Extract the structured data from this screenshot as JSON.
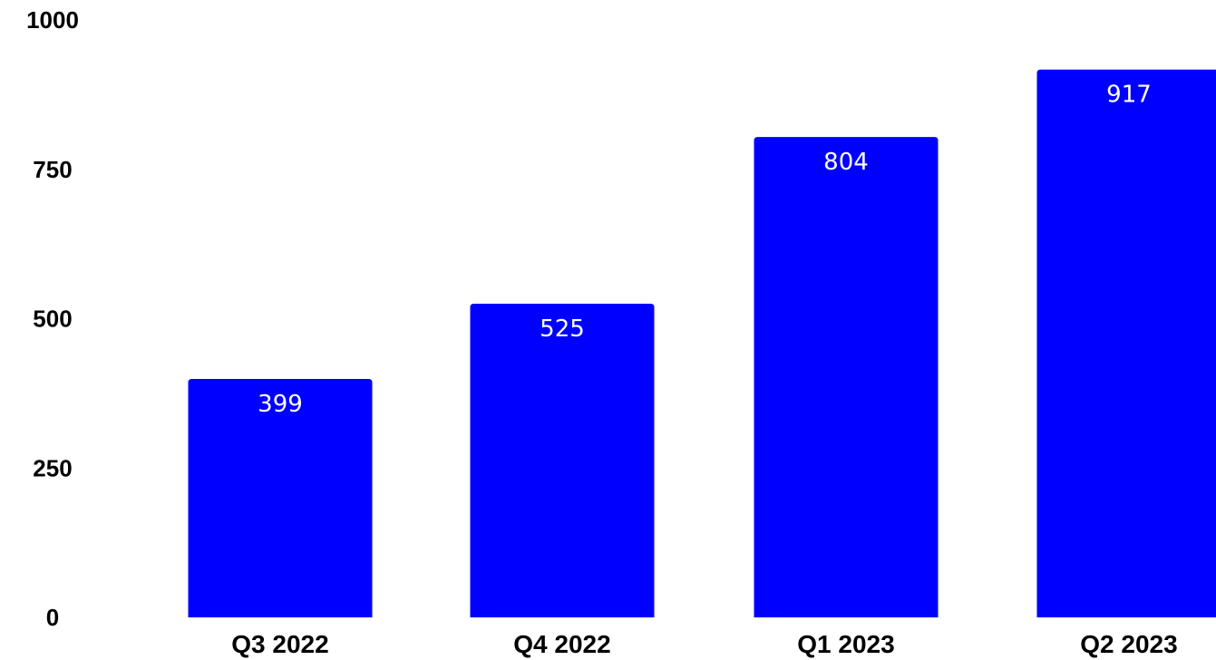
{
  "chart_data": {
    "type": "bar",
    "title": "",
    "xlabel": "",
    "ylabel": "",
    "categories": [
      "Q3 2022",
      "Q4 2022",
      "Q1 2023",
      "Q2 2023"
    ],
    "values": [
      399,
      525,
      804,
      917
    ],
    "data_labels": [
      "399",
      "525",
      "804",
      "917"
    ],
    "ylim": [
      0,
      1000
    ],
    "yticks": [
      0,
      250,
      500,
      750,
      1000
    ],
    "ytick_labels": [
      "0",
      "250",
      "500",
      "750",
      "1000"
    ],
    "grid": false,
    "legend": "none",
    "bar_color": "#0000ff",
    "label_color": "#ffffff"
  }
}
